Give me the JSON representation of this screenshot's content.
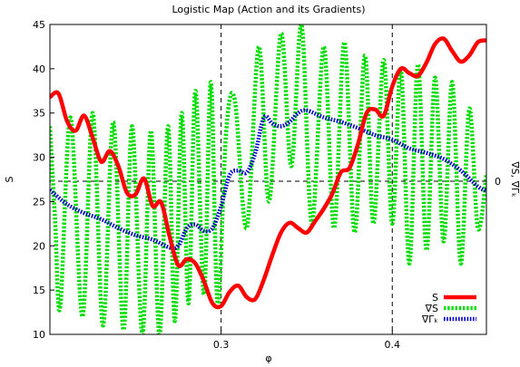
{
  "chart_data": {
    "type": "line",
    "title": "Logistic Map (Action and its Gradients)",
    "xlabel": "φ",
    "ylabel": "S",
    "y2label": "∇S, ∇Γₖ",
    "xlim": [
      0.2,
      0.455
    ],
    "ylim": [
      10,
      45
    ],
    "xticks": [
      0.3,
      0.4
    ],
    "xtick_labels": [
      "0.3",
      "0.4"
    ],
    "yticks": [
      10,
      15,
      20,
      25,
      30,
      35,
      40,
      45
    ],
    "ytick_labels": [
      "10",
      "15",
      "20",
      "25",
      "30",
      "35",
      "40",
      "45"
    ],
    "y2ticks": [
      27.3
    ],
    "y2tick_labels": [
      "0"
    ],
    "vlines": [
      0.3,
      0.4
    ],
    "hline": 27.3,
    "grid": false,
    "legend": "bottom-right",
    "series": [
      {
        "name": "S",
        "color": "#ff0000",
        "style": "solid",
        "x": [
          0.2,
          0.205,
          0.21,
          0.215,
          0.22,
          0.225,
          0.23,
          0.235,
          0.24,
          0.245,
          0.25,
          0.255,
          0.26,
          0.265,
          0.27,
          0.275,
          0.28,
          0.285,
          0.29,
          0.295,
          0.3,
          0.305,
          0.31,
          0.315,
          0.32,
          0.325,
          0.33,
          0.335,
          0.34,
          0.345,
          0.35,
          0.355,
          0.36,
          0.365,
          0.37,
          0.375,
          0.38,
          0.385,
          0.39,
          0.395,
          0.4,
          0.405,
          0.41,
          0.415,
          0.42,
          0.425,
          0.43,
          0.435,
          0.44,
          0.445,
          0.45,
          0.455
        ],
        "values": [
          36.8,
          37.2,
          34.1,
          33.0,
          34.7,
          32.2,
          29.5,
          30.7,
          29.0,
          26.0,
          25.8,
          27.6,
          24.5,
          24.9,
          21.0,
          17.8,
          18.5,
          18.0,
          16.0,
          13.5,
          13.2,
          14.8,
          15.5,
          14.2,
          14.0,
          16.2,
          19.0,
          21.5,
          22.6,
          22.0,
          21.5,
          22.8,
          24.2,
          25.9,
          28.3,
          28.8,
          31.5,
          35.0,
          35.4,
          34.7,
          38.0,
          40.0,
          39.5,
          39.2,
          40.7,
          42.8,
          43.4,
          42.0,
          40.8,
          41.5,
          43.0,
          43.2
        ]
      },
      {
        "name": "∇S",
        "color": "#00dd00",
        "style": "dotted",
        "x": [
          0.2,
          0.203,
          0.206,
          0.212,
          0.219,
          0.225,
          0.231,
          0.237,
          0.243,
          0.248,
          0.254,
          0.259,
          0.264,
          0.269,
          0.273,
          0.277,
          0.281,
          0.285,
          0.29,
          0.294,
          0.298,
          0.303,
          0.308,
          0.315,
          0.322,
          0.328,
          0.335,
          0.341,
          0.347,
          0.353,
          0.36,
          0.366,
          0.372,
          0.378,
          0.384,
          0.389,
          0.395,
          0.4,
          0.405,
          0.41,
          0.415,
          0.42,
          0.425,
          0.43,
          0.435,
          0.44,
          0.445,
          0.45,
          0.455
        ],
        "values": [
          33.5,
          23.0,
          13.0,
          34.5,
          12.0,
          35.0,
          11.0,
          34.0,
          10.5,
          33.5,
          10.0,
          33.0,
          10.0,
          33.5,
          11.5,
          35.0,
          13.5,
          37.5,
          14.5,
          38.5,
          13.5,
          33.0,
          36.5,
          22.0,
          42.5,
          25.0,
          44.0,
          29.0,
          45.0,
          22.5,
          42.5,
          22.0,
          43.0,
          21.5,
          41.5,
          22.5,
          41.0,
          22.5,
          40.0,
          18.0,
          40.5,
          19.5,
          39.0,
          20.5,
          38.5,
          18.0,
          35.5,
          22.0,
          28.0
        ]
      },
      {
        "name": "∇Γₖ",
        "color": "#0000cc",
        "style": "dotted",
        "x": [
          0.2,
          0.21,
          0.22,
          0.23,
          0.24,
          0.25,
          0.26,
          0.27,
          0.275,
          0.28,
          0.285,
          0.29,
          0.295,
          0.3,
          0.305,
          0.31,
          0.315,
          0.32,
          0.325,
          0.33,
          0.335,
          0.34,
          0.345,
          0.35,
          0.36,
          0.37,
          0.38,
          0.39,
          0.4,
          0.41,
          0.42,
          0.43,
          0.44,
          0.45,
          0.455
        ],
        "values": [
          26.3,
          24.7,
          23.7,
          23.0,
          22.0,
          21.2,
          20.7,
          19.8,
          20.0,
          22.0,
          22.4,
          21.7,
          22.0,
          24.5,
          28.0,
          28.5,
          28.3,
          30.5,
          34.5,
          33.8,
          33.5,
          34.0,
          35.0,
          35.3,
          34.5,
          34.0,
          33.3,
          32.5,
          32.0,
          31.0,
          30.5,
          29.8,
          28.5,
          26.7,
          26.2
        ]
      }
    ]
  }
}
